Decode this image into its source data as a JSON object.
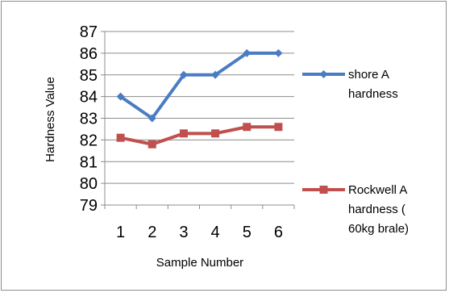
{
  "chart_data": {
    "type": "line",
    "title": "",
    "xlabel": "Sample Number",
    "ylabel": "Hardness Value",
    "x": [
      1,
      2,
      3,
      4,
      5,
      6
    ],
    "x_tick_labels": [
      "1",
      "2",
      "3",
      "4",
      "5",
      "6"
    ],
    "ylim": [
      79,
      87
    ],
    "y_ticks": [
      79,
      80,
      81,
      82,
      83,
      84,
      85,
      86,
      87
    ],
    "grid": "horizontal",
    "legend_position": "right",
    "series": [
      {
        "name": "shore A hardness",
        "legend_lines": [
          "shore A",
          "hardness"
        ],
        "values": [
          84,
          83,
          85,
          85,
          86,
          86
        ],
        "color": "#4a7cc4",
        "marker": "diamond"
      },
      {
        "name": "Rockwell A hardness ( 60kg brale)",
        "legend_lines": [
          "Rockwell A",
          "hardness (",
          "60kg brale)"
        ],
        "values": [
          82.1,
          81.8,
          82.3,
          82.3,
          82.6,
          82.6
        ],
        "color": "#c0504d",
        "marker": "square"
      }
    ]
  }
}
